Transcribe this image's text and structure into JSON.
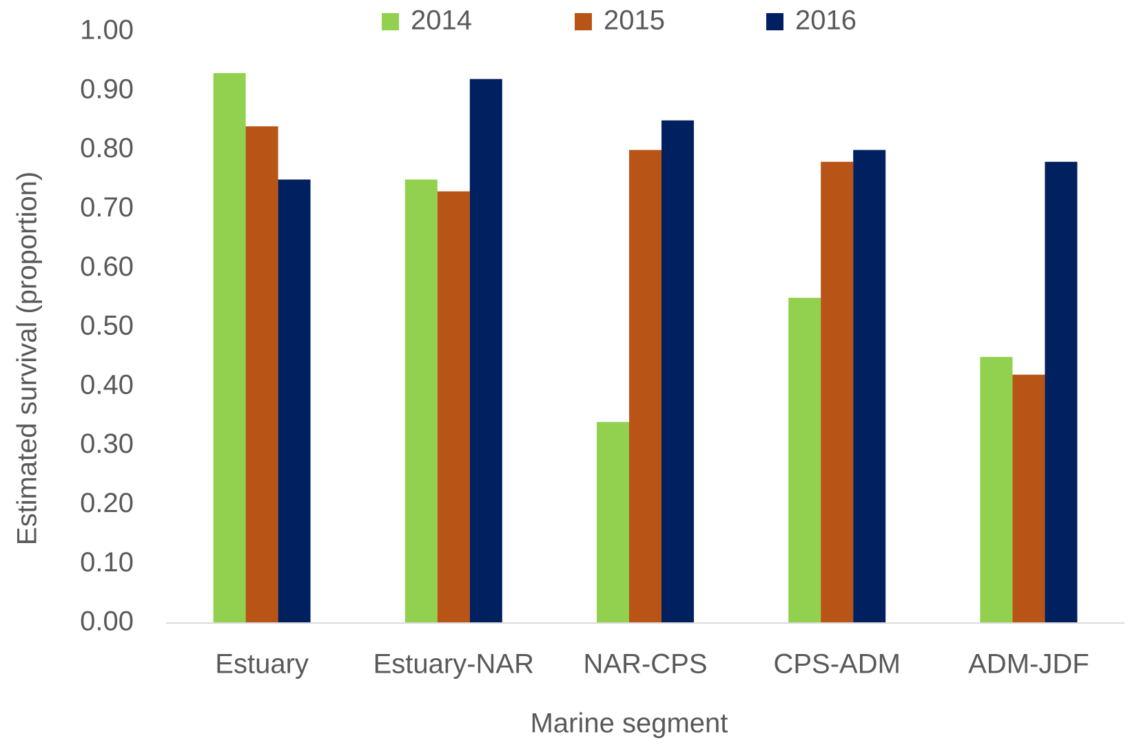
{
  "chart_data": {
    "type": "bar",
    "x_label": "Marine segment",
    "y_label": "Estimated survival (proportion)",
    "categories": [
      "Estuary",
      "Estuary-NAR",
      "NAR-CPS",
      "CPS-ADM",
      "ADM-JDF"
    ],
    "series": [
      {
        "name": "2014",
        "color": "#92d050",
        "values": [
          0.93,
          0.75,
          0.34,
          0.55,
          0.45
        ]
      },
      {
        "name": "2015",
        "color": "#b85416",
        "values": [
          0.84,
          0.73,
          0.8,
          0.78,
          0.42
        ]
      },
      {
        "name": "2016",
        "color": "#002060",
        "values": [
          0.75,
          0.92,
          0.85,
          0.8,
          0.78
        ]
      }
    ],
    "ylim": [
      0,
      1
    ],
    "yticks": [
      {
        "value": 0,
        "label": "0.00"
      },
      {
        "value": 0.1,
        "label": "0.10"
      },
      {
        "value": 0.2,
        "label": "0.20"
      },
      {
        "value": 0.3,
        "label": "0.30"
      },
      {
        "value": 0.4,
        "label": "0.40"
      },
      {
        "value": 0.5,
        "label": "0.50"
      },
      {
        "value": 0.6,
        "label": "0.60"
      },
      {
        "value": 0.7,
        "label": "0.70"
      },
      {
        "value": 0.8,
        "label": "0.80"
      },
      {
        "value": 0.9,
        "label": "0.90"
      },
      {
        "value": 1,
        "label": "1.00"
      }
    ],
    "grid": false,
    "legend": "top"
  }
}
